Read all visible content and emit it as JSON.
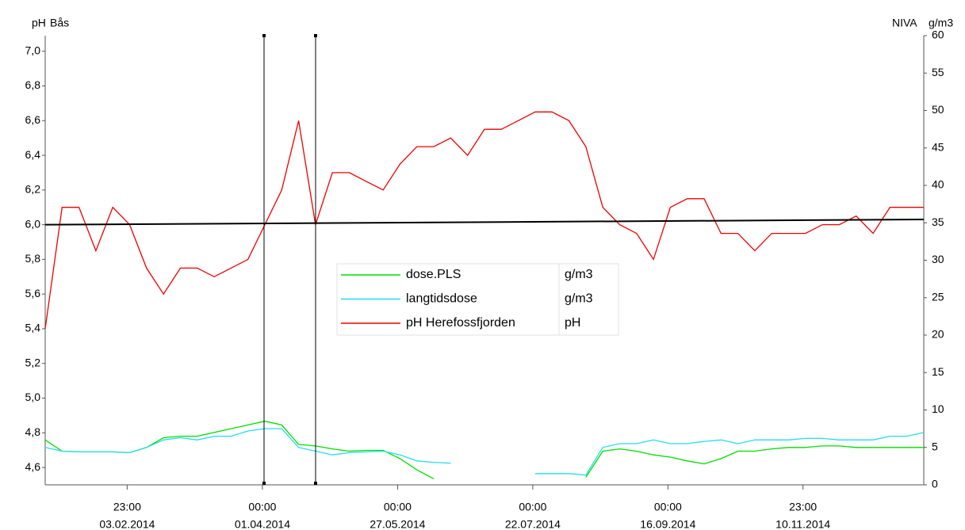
{
  "chart_data": {
    "type": "line",
    "title": "Bås",
    "y_label": "pH",
    "y2_title": "NIVA",
    "y2_label": "g/m3",
    "x": [
      "2014-01-01",
      "2014-01-08",
      "2014-01-15",
      "2014-01-22",
      "2014-01-29",
      "2014-02-05",
      "2014-02-12",
      "2014-02-19",
      "2014-02-26",
      "2014-03-05",
      "2014-03-12",
      "2014-03-19",
      "2014-03-26",
      "2014-04-02",
      "2014-04-09",
      "2014-04-16",
      "2014-04-23",
      "2014-04-30",
      "2014-05-07",
      "2014-05-14",
      "2014-05-21",
      "2014-05-28",
      "2014-06-04",
      "2014-06-11",
      "2014-06-18",
      "2014-06-25",
      "2014-07-02",
      "2014-07-09",
      "2014-07-16",
      "2014-07-23",
      "2014-07-30",
      "2014-08-06",
      "2014-08-13",
      "2014-08-20",
      "2014-08-27",
      "2014-09-03",
      "2014-09-10",
      "2014-09-17",
      "2014-09-24",
      "2014-10-01",
      "2014-10-08",
      "2014-10-15",
      "2014-10-22",
      "2014-10-29",
      "2014-11-05",
      "2014-11-12",
      "2014-11-19",
      "2014-11-26",
      "2014-12-03",
      "2014-12-10",
      "2014-12-17",
      "2014-12-24",
      "2014-12-31"
    ],
    "series": [
      {
        "name": "dose.PLS",
        "unit": "g/m3",
        "color": "#00dd00",
        "axis": "y2",
        "values": [
          6,
          4.5,
          4.4,
          4.4,
          4.4,
          4.3,
          5,
          6.3,
          6.5,
          6.5,
          7,
          7.5,
          8,
          8.5,
          8,
          5.4,
          5.2,
          4.8,
          4.5,
          4.6,
          4.6,
          3.5,
          2,
          0.8,
          null,
          null,
          null,
          null,
          null,
          null,
          null,
          null,
          1,
          4.5,
          4.8,
          4.5,
          4,
          3.7,
          3.2,
          2.8,
          3.5,
          4.5,
          4.5,
          4.8,
          5,
          5,
          5.2,
          5.2,
          5,
          5,
          5,
          5,
          5
        ]
      },
      {
        "name": "langtidsdose",
        "unit": "g/m3",
        "color": "#22ddee",
        "axis": "y2",
        "values": [
          5,
          4.5,
          4.4,
          4.4,
          4.4,
          4.3,
          5,
          6,
          6.3,
          6,
          6.5,
          6.5,
          7.2,
          7.5,
          7.5,
          5,
          4.5,
          4,
          4.3,
          4.4,
          4.5,
          4,
          3.2,
          3,
          2.9,
          null,
          null,
          null,
          null,
          1.5,
          1.5,
          1.5,
          1.3,
          5,
          5.5,
          5.5,
          6,
          5.5,
          5.5,
          5.8,
          6,
          5.5,
          6,
          6,
          6,
          6.2,
          6.2,
          6,
          6,
          6,
          6.5,
          6.5,
          7
        ]
      },
      {
        "name": "pH Herefossfjorden",
        "unit": "pH",
        "color": "#ee0000",
        "axis": "y",
        "values": [
          5.4,
          6.1,
          6.1,
          5.85,
          6.1,
          6.0,
          5.75,
          5.6,
          5.75,
          5.75,
          5.7,
          5.75,
          5.8,
          6.0,
          6.2,
          6.6,
          6.0,
          6.3,
          6.3,
          6.25,
          6.2,
          6.35,
          6.45,
          6.45,
          6.5,
          6.4,
          6.55,
          6.55,
          6.6,
          6.65,
          6.65,
          6.6,
          6.45,
          6.1,
          6.0,
          5.95,
          5.8,
          6.1,
          6.15,
          6.15,
          5.95,
          5.95,
          5.85,
          5.95,
          5.95,
          5.95,
          6.0,
          6.0,
          6.05,
          5.95,
          6.1,
          6.1,
          6.1
        ]
      }
    ],
    "reference_line": {
      "color": "#000000",
      "x": [
        "2014-01-01",
        "2014-12-31"
      ],
      "values": [
        6.0,
        6.03
      ]
    },
    "xlim": [
      "2014-01-01",
      "2014-12-31"
    ],
    "xticks": [
      {
        "value": "2014-02-03T23:00",
        "label": [
          "23:00",
          "03.02.2014"
        ]
      },
      {
        "value": "2014-04-01T00:00",
        "label": [
          "00:00",
          "01.04.2014"
        ]
      },
      {
        "value": "2014-05-27T00:00",
        "label": [
          "00:00",
          "27.05.2014"
        ]
      },
      {
        "value": "2014-07-22T00:00",
        "label": [
          "00:00",
          "22.07.2014"
        ]
      },
      {
        "value": "2014-09-16T00:00",
        "label": [
          "00:00",
          "16.09.2014"
        ]
      },
      {
        "value": "2014-11-10T23:00",
        "label": [
          "23:00",
          "10.11.2014"
        ]
      }
    ],
    "ylim": [
      4.5,
      7.09
    ],
    "yticks": [
      {
        "value": 4.6,
        "label": "4,6"
      },
      {
        "value": 4.8,
        "label": "4,8"
      },
      {
        "value": 5.0,
        "label": "5,0"
      },
      {
        "value": 5.2,
        "label": "5,2"
      },
      {
        "value": 5.4,
        "label": "5,4"
      },
      {
        "value": 5.6,
        "label": "5,6"
      },
      {
        "value": 5.8,
        "label": "5,8"
      },
      {
        "value": 6.0,
        "label": "6,0"
      },
      {
        "value": 6.2,
        "label": "6,2"
      },
      {
        "value": 6.4,
        "label": "6,4"
      },
      {
        "value": 6.6,
        "label": "6,6"
      },
      {
        "value": 6.8,
        "label": "6,8"
      },
      {
        "value": 7.0,
        "label": "7,0"
      }
    ],
    "y2lim": [
      0,
      60
    ],
    "y2ticks": [
      0,
      5,
      10,
      15,
      20,
      25,
      30,
      35,
      40,
      45,
      50,
      55,
      60
    ]
  }
}
